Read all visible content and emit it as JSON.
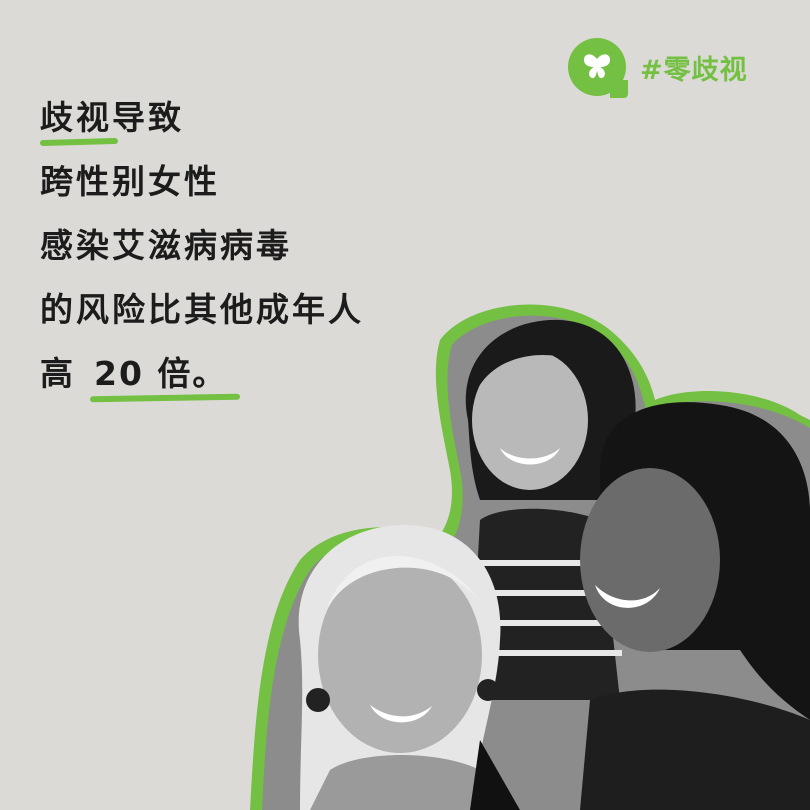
{
  "headline": {
    "line1_highlight": "歧视",
    "line1_rest": "导致",
    "line2": "跨性别女性",
    "line3": "感染艾滋病病毒",
    "line4": "的风险比其他成年人",
    "line5_prefix": "高",
    "line5_number": "20 倍",
    "line5_suffix": "。"
  },
  "brand": {
    "hashtag": "#零歧视",
    "logo_icon": "butterfly-icon"
  },
  "colors": {
    "background": "#dcdad6",
    "accent_green": "#74c043",
    "text": "#1c1c1c"
  }
}
